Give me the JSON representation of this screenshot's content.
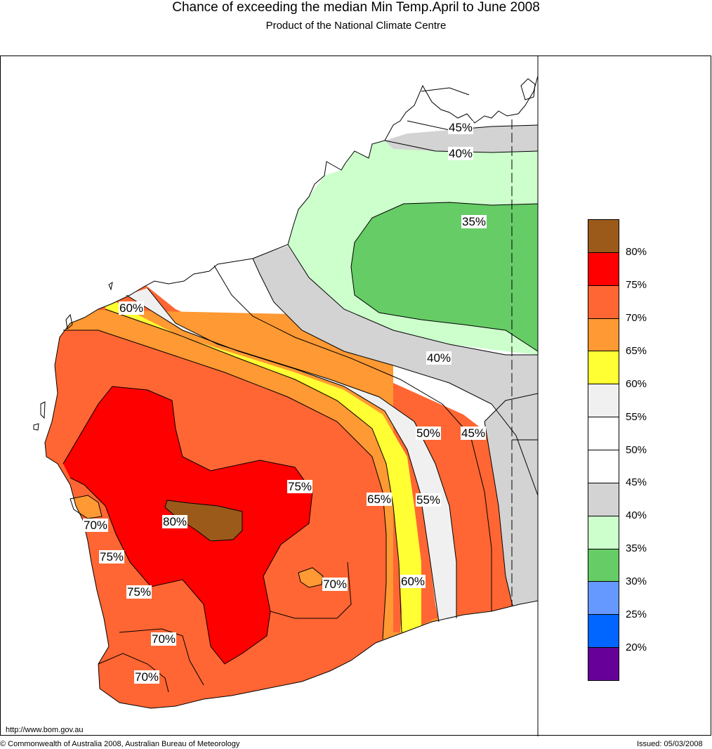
{
  "title": "Chance of exceeding the median Min Temp.April to June 2008",
  "subtitle": "Product of the National Climate Centre",
  "map_labels": [
    {
      "id": "l45a",
      "text": "45%"
    },
    {
      "id": "l40a",
      "text": "40%"
    },
    {
      "id": "l35",
      "text": "35%"
    },
    {
      "id": "l60a",
      "text": "60%"
    },
    {
      "id": "l40b",
      "text": "40%"
    },
    {
      "id": "l50",
      "text": "50%"
    },
    {
      "id": "l45b",
      "text": "45%"
    },
    {
      "id": "l75a",
      "text": "75%"
    },
    {
      "id": "l65",
      "text": "65%"
    },
    {
      "id": "l55",
      "text": "55%"
    },
    {
      "id": "l70a",
      "text": "70%"
    },
    {
      "id": "l80",
      "text": "80%"
    },
    {
      "id": "l75b",
      "text": "75%"
    },
    {
      "id": "l70b",
      "text": "70%"
    },
    {
      "id": "l60b",
      "text": "60%"
    },
    {
      "id": "l75c",
      "text": "75%"
    },
    {
      "id": "l70c",
      "text": "70%"
    },
    {
      "id": "l70d",
      "text": "70%"
    }
  ],
  "legend": {
    "colors": [
      "#9b5a1a",
      "#ff0000",
      "#ff6633",
      "#ff9933",
      "#ffff33",
      "#f0f0f0",
      "#ffffff",
      "#ffffff",
      "#d3d3d3",
      "#ccffcc",
      "#66cc66",
      "#6699ff",
      "#0066ff",
      "#660099"
    ],
    "ticks": [
      "80%",
      "75%",
      "70%",
      "65%",
      "60%",
      "55%",
      "50%",
      "45%",
      "40%",
      "35%",
      "30%",
      "25%",
      "20%"
    ]
  },
  "footer": {
    "url": "http://www.bom.gov.au",
    "copyright": "© Commonwealth of Australia 2008, Australian Bureau of Meteorology",
    "issued": "Issued: 05/03/2008"
  }
}
